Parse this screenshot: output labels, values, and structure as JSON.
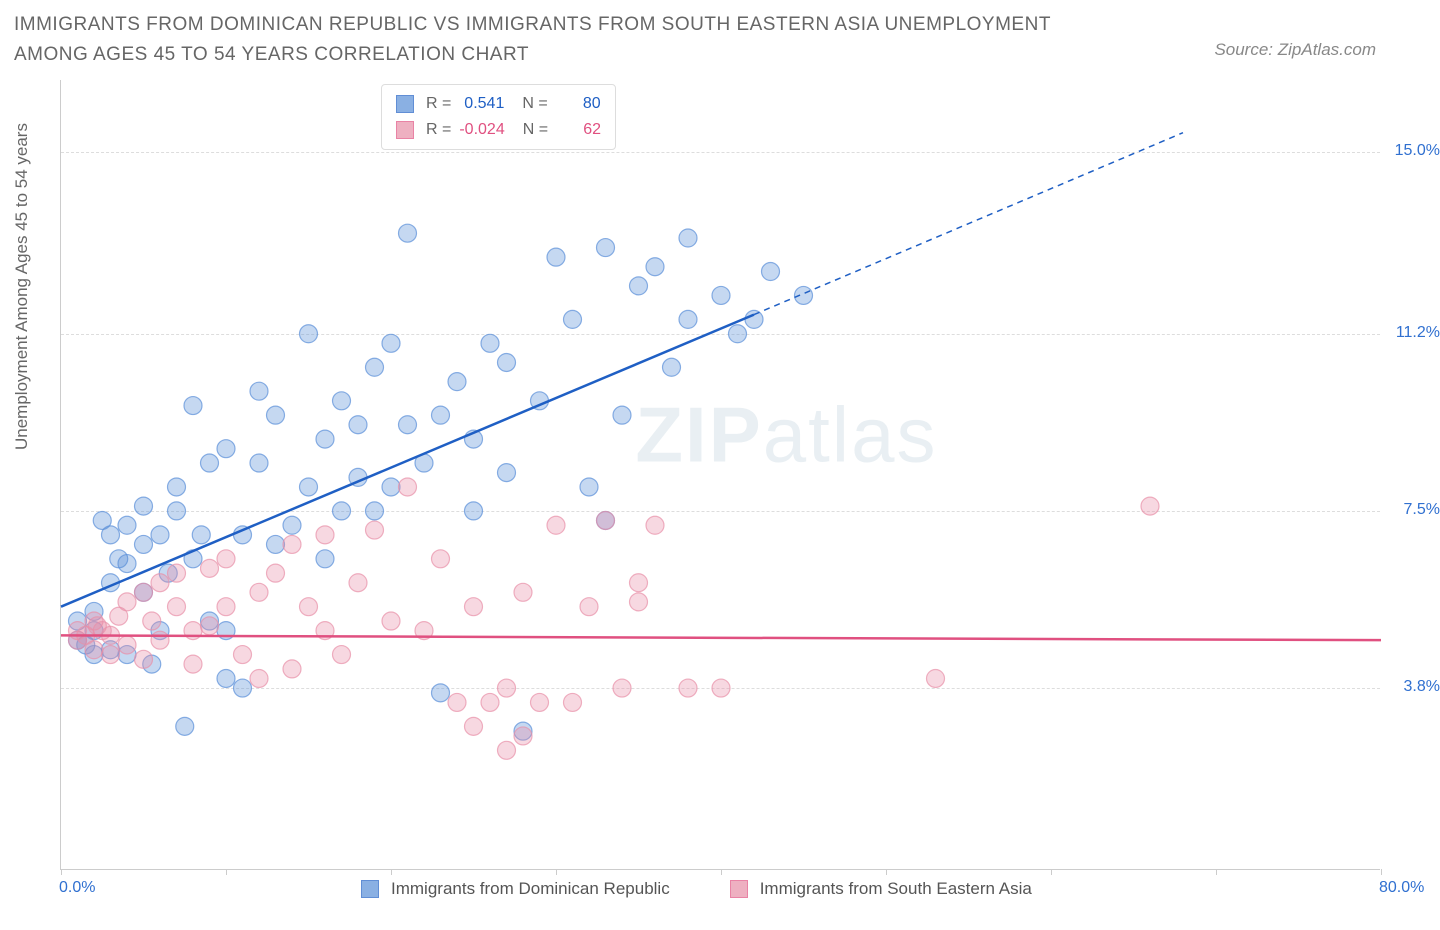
{
  "title": "IMMIGRANTS FROM DOMINICAN REPUBLIC VS IMMIGRANTS FROM SOUTH EASTERN ASIA UNEMPLOYMENT AMONG AGES 45 TO 54 YEARS CORRELATION CHART",
  "source": "Source: ZipAtlas.com",
  "ylabel": "Unemployment Among Ages 45 to 54 years",
  "watermark_bold": "ZIP",
  "watermark_light": "atlas",
  "chart": {
    "type": "scatter",
    "xlim": [
      0,
      80
    ],
    "ylim": [
      0,
      16.5
    ],
    "xticks": [
      0,
      10,
      20,
      30,
      40,
      50,
      60,
      70,
      80
    ],
    "xtick_labels": {
      "0": "0.0%",
      "80": "80.0%"
    },
    "yticks": [
      3.8,
      7.5,
      11.2,
      15.0
    ],
    "ytick_labels": [
      "3.8%",
      "7.5%",
      "11.2%",
      "15.0%"
    ],
    "background_color": "#ffffff",
    "grid_color": "#dddddd",
    "marker_radius": 9,
    "marker_opacity": 0.35,
    "line_width": 2.5,
    "series": [
      {
        "name": "Immigrants from Dominican Republic",
        "color": "#5a8fd8",
        "line_color": "#1f5fc4",
        "R": "0.541",
        "N": "80",
        "regression": {
          "x1": 0,
          "y1": 5.5,
          "x2": 42,
          "y2": 11.6,
          "dash_x2": 68,
          "dash_y2": 15.4
        },
        "points": [
          [
            1,
            4.8
          ],
          [
            1,
            5.2
          ],
          [
            1.5,
            4.7
          ],
          [
            2,
            5.0
          ],
          [
            2,
            5.4
          ],
          [
            2,
            4.5
          ],
          [
            2.5,
            7.3
          ],
          [
            3,
            6.0
          ],
          [
            3,
            4.6
          ],
          [
            3,
            7.0
          ],
          [
            3.5,
            6.5
          ],
          [
            4,
            6.4
          ],
          [
            4,
            7.2
          ],
          [
            4,
            4.5
          ],
          [
            5,
            6.8
          ],
          [
            5,
            7.6
          ],
          [
            5,
            5.8
          ],
          [
            5.5,
            4.3
          ],
          [
            6,
            5.0
          ],
          [
            6,
            7.0
          ],
          [
            6.5,
            6.2
          ],
          [
            7,
            8.0
          ],
          [
            7,
            7.5
          ],
          [
            7.5,
            3.0
          ],
          [
            8,
            6.5
          ],
          [
            8,
            9.7
          ],
          [
            8.5,
            7.0
          ],
          [
            9,
            8.5
          ],
          [
            9,
            5.2
          ],
          [
            10,
            5.0
          ],
          [
            10,
            4.0
          ],
          [
            10,
            8.8
          ],
          [
            11,
            3.8
          ],
          [
            11,
            7.0
          ],
          [
            12,
            10.0
          ],
          [
            12,
            8.5
          ],
          [
            13,
            6.8
          ],
          [
            13,
            9.5
          ],
          [
            14,
            7.2
          ],
          [
            15,
            11.2
          ],
          [
            15,
            8.0
          ],
          [
            16,
            9.0
          ],
          [
            16,
            6.5
          ],
          [
            17,
            7.5
          ],
          [
            17,
            9.8
          ],
          [
            18,
            8.2
          ],
          [
            18,
            9.3
          ],
          [
            19,
            10.5
          ],
          [
            19,
            7.5
          ],
          [
            20,
            11.0
          ],
          [
            20,
            8.0
          ],
          [
            21,
            13.3
          ],
          [
            21,
            9.3
          ],
          [
            22,
            8.5
          ],
          [
            23,
            9.5
          ],
          [
            23,
            3.7
          ],
          [
            24,
            10.2
          ],
          [
            25,
            9.0
          ],
          [
            25,
            7.5
          ],
          [
            26,
            11.0
          ],
          [
            27,
            8.3
          ],
          [
            27,
            10.6
          ],
          [
            28,
            2.9
          ],
          [
            29,
            9.8
          ],
          [
            30,
            12.8
          ],
          [
            31,
            11.5
          ],
          [
            32,
            8.0
          ],
          [
            33,
            13.0
          ],
          [
            33,
            7.3
          ],
          [
            34,
            9.5
          ],
          [
            35,
            12.2
          ],
          [
            36,
            12.6
          ],
          [
            37,
            10.5
          ],
          [
            38,
            13.2
          ],
          [
            38,
            11.5
          ],
          [
            40,
            12.0
          ],
          [
            41,
            11.2
          ],
          [
            42,
            11.5
          ],
          [
            43,
            12.5
          ],
          [
            45,
            12.0
          ]
        ]
      },
      {
        "name": "Immigrants from South Eastern Asia",
        "color": "#e890a8",
        "line_color": "#e05080",
        "R": "-0.024",
        "N": "62",
        "regression": {
          "x1": 0,
          "y1": 4.9,
          "x2": 80,
          "y2": 4.8
        },
        "points": [
          [
            1,
            5.0
          ],
          [
            1,
            4.8
          ],
          [
            2,
            4.6
          ],
          [
            2,
            5.2
          ],
          [
            2.5,
            5.0
          ],
          [
            3,
            4.9
          ],
          [
            3,
            4.5
          ],
          [
            3.5,
            5.3
          ],
          [
            4,
            5.6
          ],
          [
            4,
            4.7
          ],
          [
            5,
            5.8
          ],
          [
            5,
            4.4
          ],
          [
            5.5,
            5.2
          ],
          [
            6,
            6.0
          ],
          [
            6,
            4.8
          ],
          [
            7,
            5.5
          ],
          [
            7,
            6.2
          ],
          [
            8,
            5.0
          ],
          [
            8,
            4.3
          ],
          [
            9,
            6.3
          ],
          [
            9,
            5.1
          ],
          [
            10,
            5.5
          ],
          [
            10,
            6.5
          ],
          [
            11,
            4.5
          ],
          [
            12,
            5.8
          ],
          [
            12,
            4.0
          ],
          [
            13,
            6.2
          ],
          [
            14,
            6.8
          ],
          [
            14,
            4.2
          ],
          [
            15,
            5.5
          ],
          [
            16,
            7.0
          ],
          [
            16,
            5.0
          ],
          [
            17,
            4.5
          ],
          [
            18,
            6.0
          ],
          [
            19,
            7.1
          ],
          [
            20,
            5.2
          ],
          [
            21,
            8.0
          ],
          [
            22,
            5.0
          ],
          [
            23,
            6.5
          ],
          [
            24,
            3.5
          ],
          [
            25,
            3.0
          ],
          [
            25,
            5.5
          ],
          [
            26,
            3.5
          ],
          [
            27,
            2.5
          ],
          [
            27,
            3.8
          ],
          [
            28,
            2.8
          ],
          [
            28,
            5.8
          ],
          [
            29,
            3.5
          ],
          [
            30,
            7.2
          ],
          [
            31,
            3.5
          ],
          [
            32,
            5.5
          ],
          [
            33,
            7.3
          ],
          [
            34,
            3.8
          ],
          [
            35,
            6.0
          ],
          [
            35,
            5.6
          ],
          [
            36,
            7.2
          ],
          [
            38,
            3.8
          ],
          [
            40,
            3.8
          ],
          [
            53,
            4.0
          ],
          [
            66,
            7.6
          ],
          [
            1.5,
            4.9
          ],
          [
            2.2,
            5.1
          ]
        ]
      }
    ]
  },
  "legend_top": {
    "r_label": "R =",
    "n_label": "N ="
  },
  "colors": {
    "title": "#666666",
    "axis_text_blue": "#3070d0",
    "axis_line": "#cccccc"
  }
}
